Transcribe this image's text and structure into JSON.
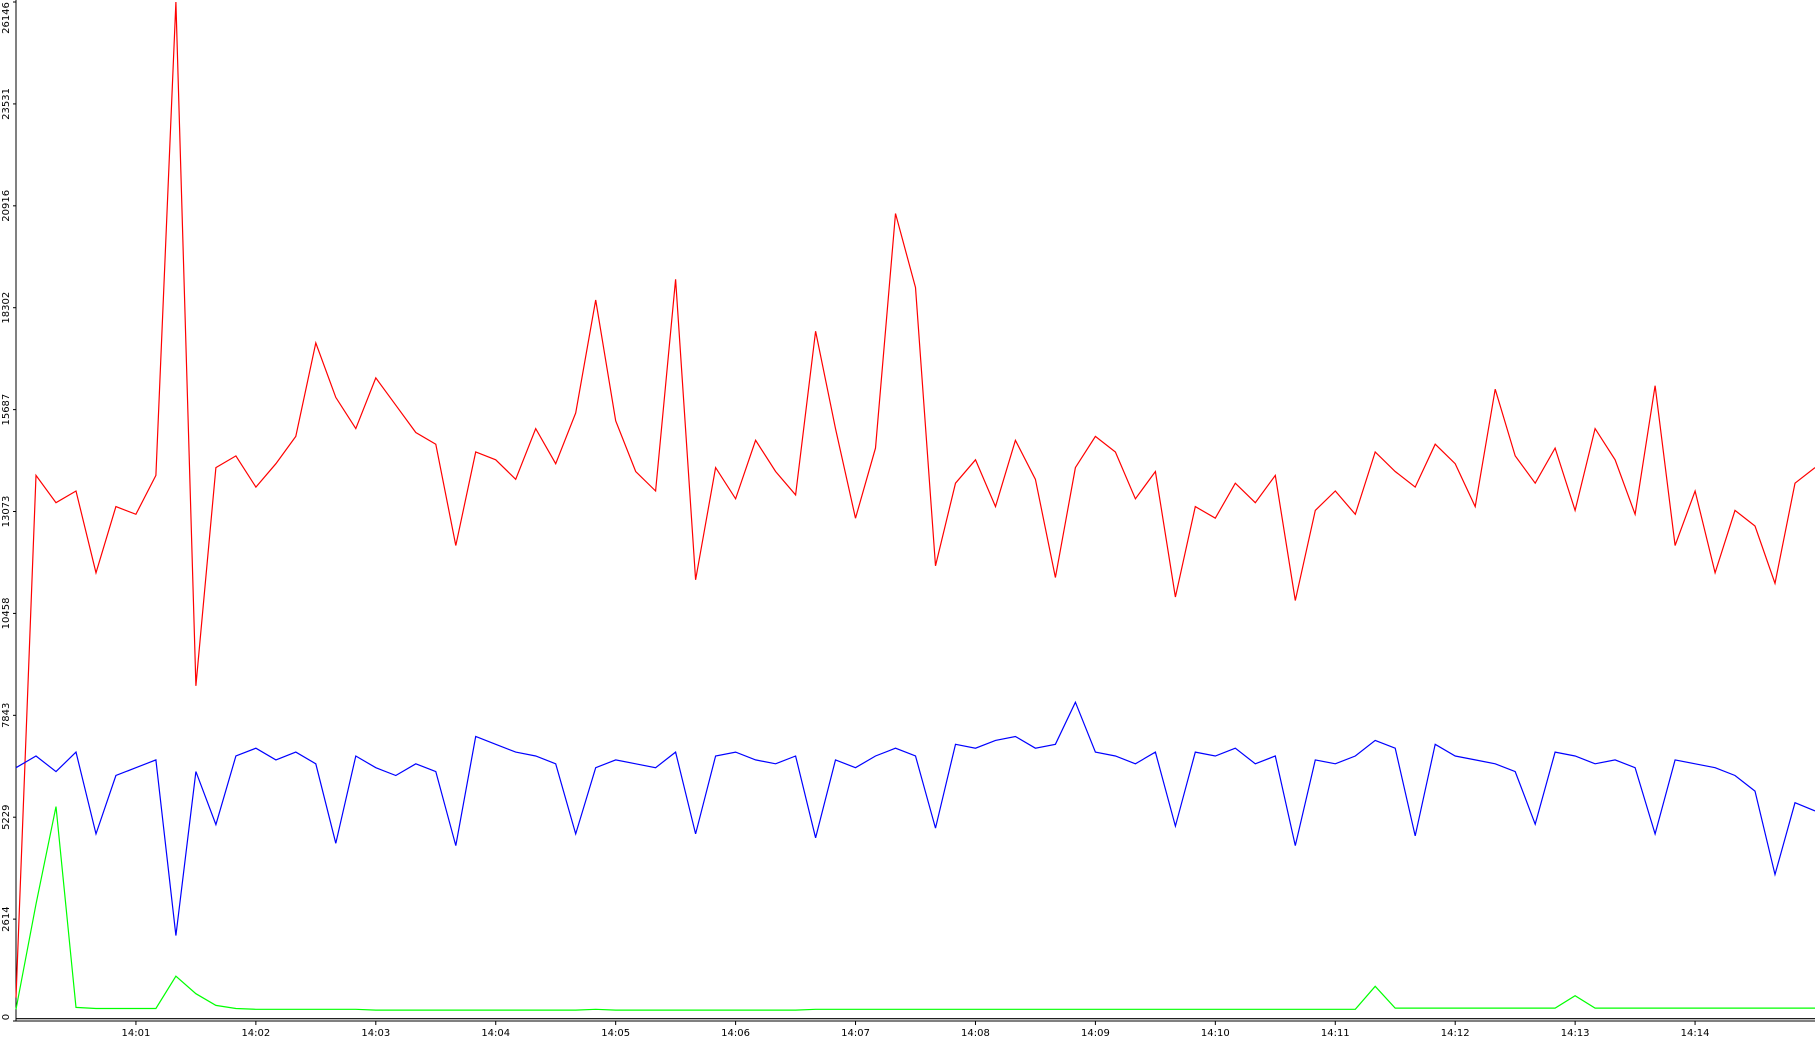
{
  "chart_data": {
    "type": "line",
    "x": [
      "14:00:00",
      "14:00:10",
      "14:00:20",
      "14:00:30",
      "14:00:40",
      "14:00:50",
      "14:01:00",
      "14:01:10",
      "14:01:20",
      "14:01:30",
      "14:01:40",
      "14:01:50",
      "14:02:00",
      "14:02:10",
      "14:02:20",
      "14:02:30",
      "14:02:40",
      "14:02:50",
      "14:03:00",
      "14:03:10",
      "14:03:20",
      "14:03:30",
      "14:03:40",
      "14:03:50",
      "14:04:00",
      "14:04:10",
      "14:04:20",
      "14:04:30",
      "14:04:40",
      "14:04:50",
      "14:05:00",
      "14:05:10",
      "14:05:20",
      "14:05:30",
      "14:05:40",
      "14:05:50",
      "14:06:00",
      "14:06:10",
      "14:06:20",
      "14:06:30",
      "14:06:40",
      "14:06:50",
      "14:07:00",
      "14:07:10",
      "14:07:20",
      "14:07:30",
      "14:07:40",
      "14:07:50",
      "14:08:00",
      "14:08:10",
      "14:08:20",
      "14:08:30",
      "14:08:40",
      "14:08:50",
      "14:09:00",
      "14:09:10",
      "14:09:20",
      "14:09:30",
      "14:09:40",
      "14:09:50",
      "14:10:00",
      "14:10:10",
      "14:10:20",
      "14:10:30",
      "14:10:40",
      "14:10:50",
      "14:11:00",
      "14:11:10",
      "14:11:20",
      "14:11:30",
      "14:11:40",
      "14:11:50",
      "14:12:00",
      "14:12:10",
      "14:12:20",
      "14:12:30",
      "14:12:40",
      "14:12:50",
      "14:13:00",
      "14:13:10",
      "14:13:20",
      "14:13:30",
      "14:13:40",
      "14:13:50",
      "14:14:00",
      "14:14:10",
      "14:14:20",
      "14:14:30",
      "14:14:40",
      "14:14:50",
      "14:15:00"
    ],
    "series": [
      {
        "color": "#ff0000",
        "values": [
          600,
          14000,
          13300,
          13600,
          11500,
          13200,
          13000,
          14000,
          26146,
          8600,
          14200,
          14500,
          13700,
          14300,
          15000,
          17400,
          16000,
          15200,
          16500,
          15800,
          15100,
          14800,
          12200,
          14600,
          14400,
          13900,
          15200,
          14300,
          15600,
          18500,
          15400,
          14100,
          13600,
          19030,
          11320,
          14200,
          13400,
          14900,
          14100,
          13500,
          17700,
          15200,
          12900,
          14700,
          20720,
          18820,
          11680,
          13800,
          14400,
          13200,
          14900,
          13900,
          11380,
          14200,
          15000,
          14600,
          13400,
          14100,
          10880,
          13200,
          12900,
          13800,
          13300,
          14000,
          10790,
          13100,
          13600,
          13000,
          14600,
          14100,
          13700,
          14800,
          14300,
          13200,
          16210,
          14500,
          13800,
          14700,
          13100,
          15200,
          14400,
          13000,
          16300,
          12200,
          13600,
          11500,
          13100,
          12700,
          11230,
          13800,
          14200
        ]
      },
      {
        "color": "#0000ff",
        "values": [
          6500,
          6800,
          6400,
          6900,
          4800,
          6300,
          6500,
          6700,
          2190,
          6400,
          5040,
          6800,
          7000,
          6700,
          6900,
          6600,
          4560,
          6800,
          6500,
          6300,
          6600,
          6400,
          4500,
          7300,
          7100,
          6900,
          6800,
          6600,
          4800,
          6500,
          6700,
          6600,
          6500,
          6900,
          4800,
          6800,
          6900,
          6700,
          6600,
          6800,
          4700,
          6700,
          6500,
          6800,
          7000,
          6800,
          4950,
          7100,
          7000,
          7200,
          7300,
          7000,
          7100,
          8180,
          6900,
          6800,
          6600,
          6900,
          5000,
          6900,
          6800,
          7000,
          6600,
          6800,
          4500,
          6700,
          6600,
          6800,
          7200,
          7000,
          4750,
          7100,
          6800,
          6700,
          6600,
          6400,
          5050,
          6900,
          6800,
          6600,
          6700,
          6500,
          4800,
          6700,
          6600,
          6500,
          6300,
          5900,
          3760,
          5600,
          5390
        ]
      },
      {
        "color": "#00ff00",
        "values": [
          300,
          3000,
          5500,
          350,
          320,
          320,
          320,
          320,
          1150,
          700,
          400,
          320,
          300,
          300,
          300,
          300,
          300,
          300,
          280,
          280,
          280,
          280,
          280,
          280,
          280,
          280,
          280,
          280,
          280,
          300,
          280,
          280,
          280,
          280,
          280,
          280,
          280,
          280,
          280,
          280,
          300,
          300,
          300,
          300,
          300,
          300,
          300,
          300,
          300,
          300,
          300,
          300,
          300,
          300,
          300,
          300,
          300,
          300,
          300,
          300,
          300,
          300,
          300,
          300,
          300,
          300,
          300,
          300,
          890,
          330,
          330,
          330,
          330,
          330,
          330,
          330,
          330,
          330,
          650,
          330,
          330,
          330,
          330,
          330,
          330,
          330,
          330,
          330,
          330,
          330,
          330
        ]
      },
      {
        "color": "#000000",
        "values": [
          60,
          60,
          60,
          60,
          60,
          60,
          60,
          60,
          60,
          60,
          60,
          60,
          60,
          60,
          60,
          60,
          60,
          60,
          60,
          60,
          60,
          60,
          60,
          60,
          60,
          60,
          60,
          60,
          60,
          60,
          60,
          60,
          60,
          60,
          60,
          60,
          60,
          60,
          60,
          60,
          60,
          60,
          60,
          60,
          60,
          60,
          60,
          60,
          60,
          60,
          60,
          60,
          60,
          60,
          60,
          60,
          60,
          60,
          60,
          60,
          60,
          60,
          60,
          60,
          60,
          60,
          60,
          60,
          60,
          60,
          60,
          60,
          60,
          60,
          60,
          60,
          60,
          60,
          60,
          60,
          60,
          60,
          60,
          60,
          60,
          60,
          60,
          60,
          60,
          60,
          60
        ]
      }
    ],
    "xlim": [
      "14:00",
      "14:15"
    ],
    "xticks": [
      "14:01",
      "14:02",
      "14:03",
      "14:04",
      "14:05",
      "14:06",
      "14:07",
      "14:08",
      "14:09",
      "14:10",
      "14:11",
      "14:12",
      "14:13",
      "14:14"
    ],
    "ylim": [
      0,
      26146
    ],
    "yticks": [
      0,
      2614,
      5229,
      7843,
      10458,
      13073,
      15687,
      18302,
      20916,
      23531,
      26146
    ]
  }
}
